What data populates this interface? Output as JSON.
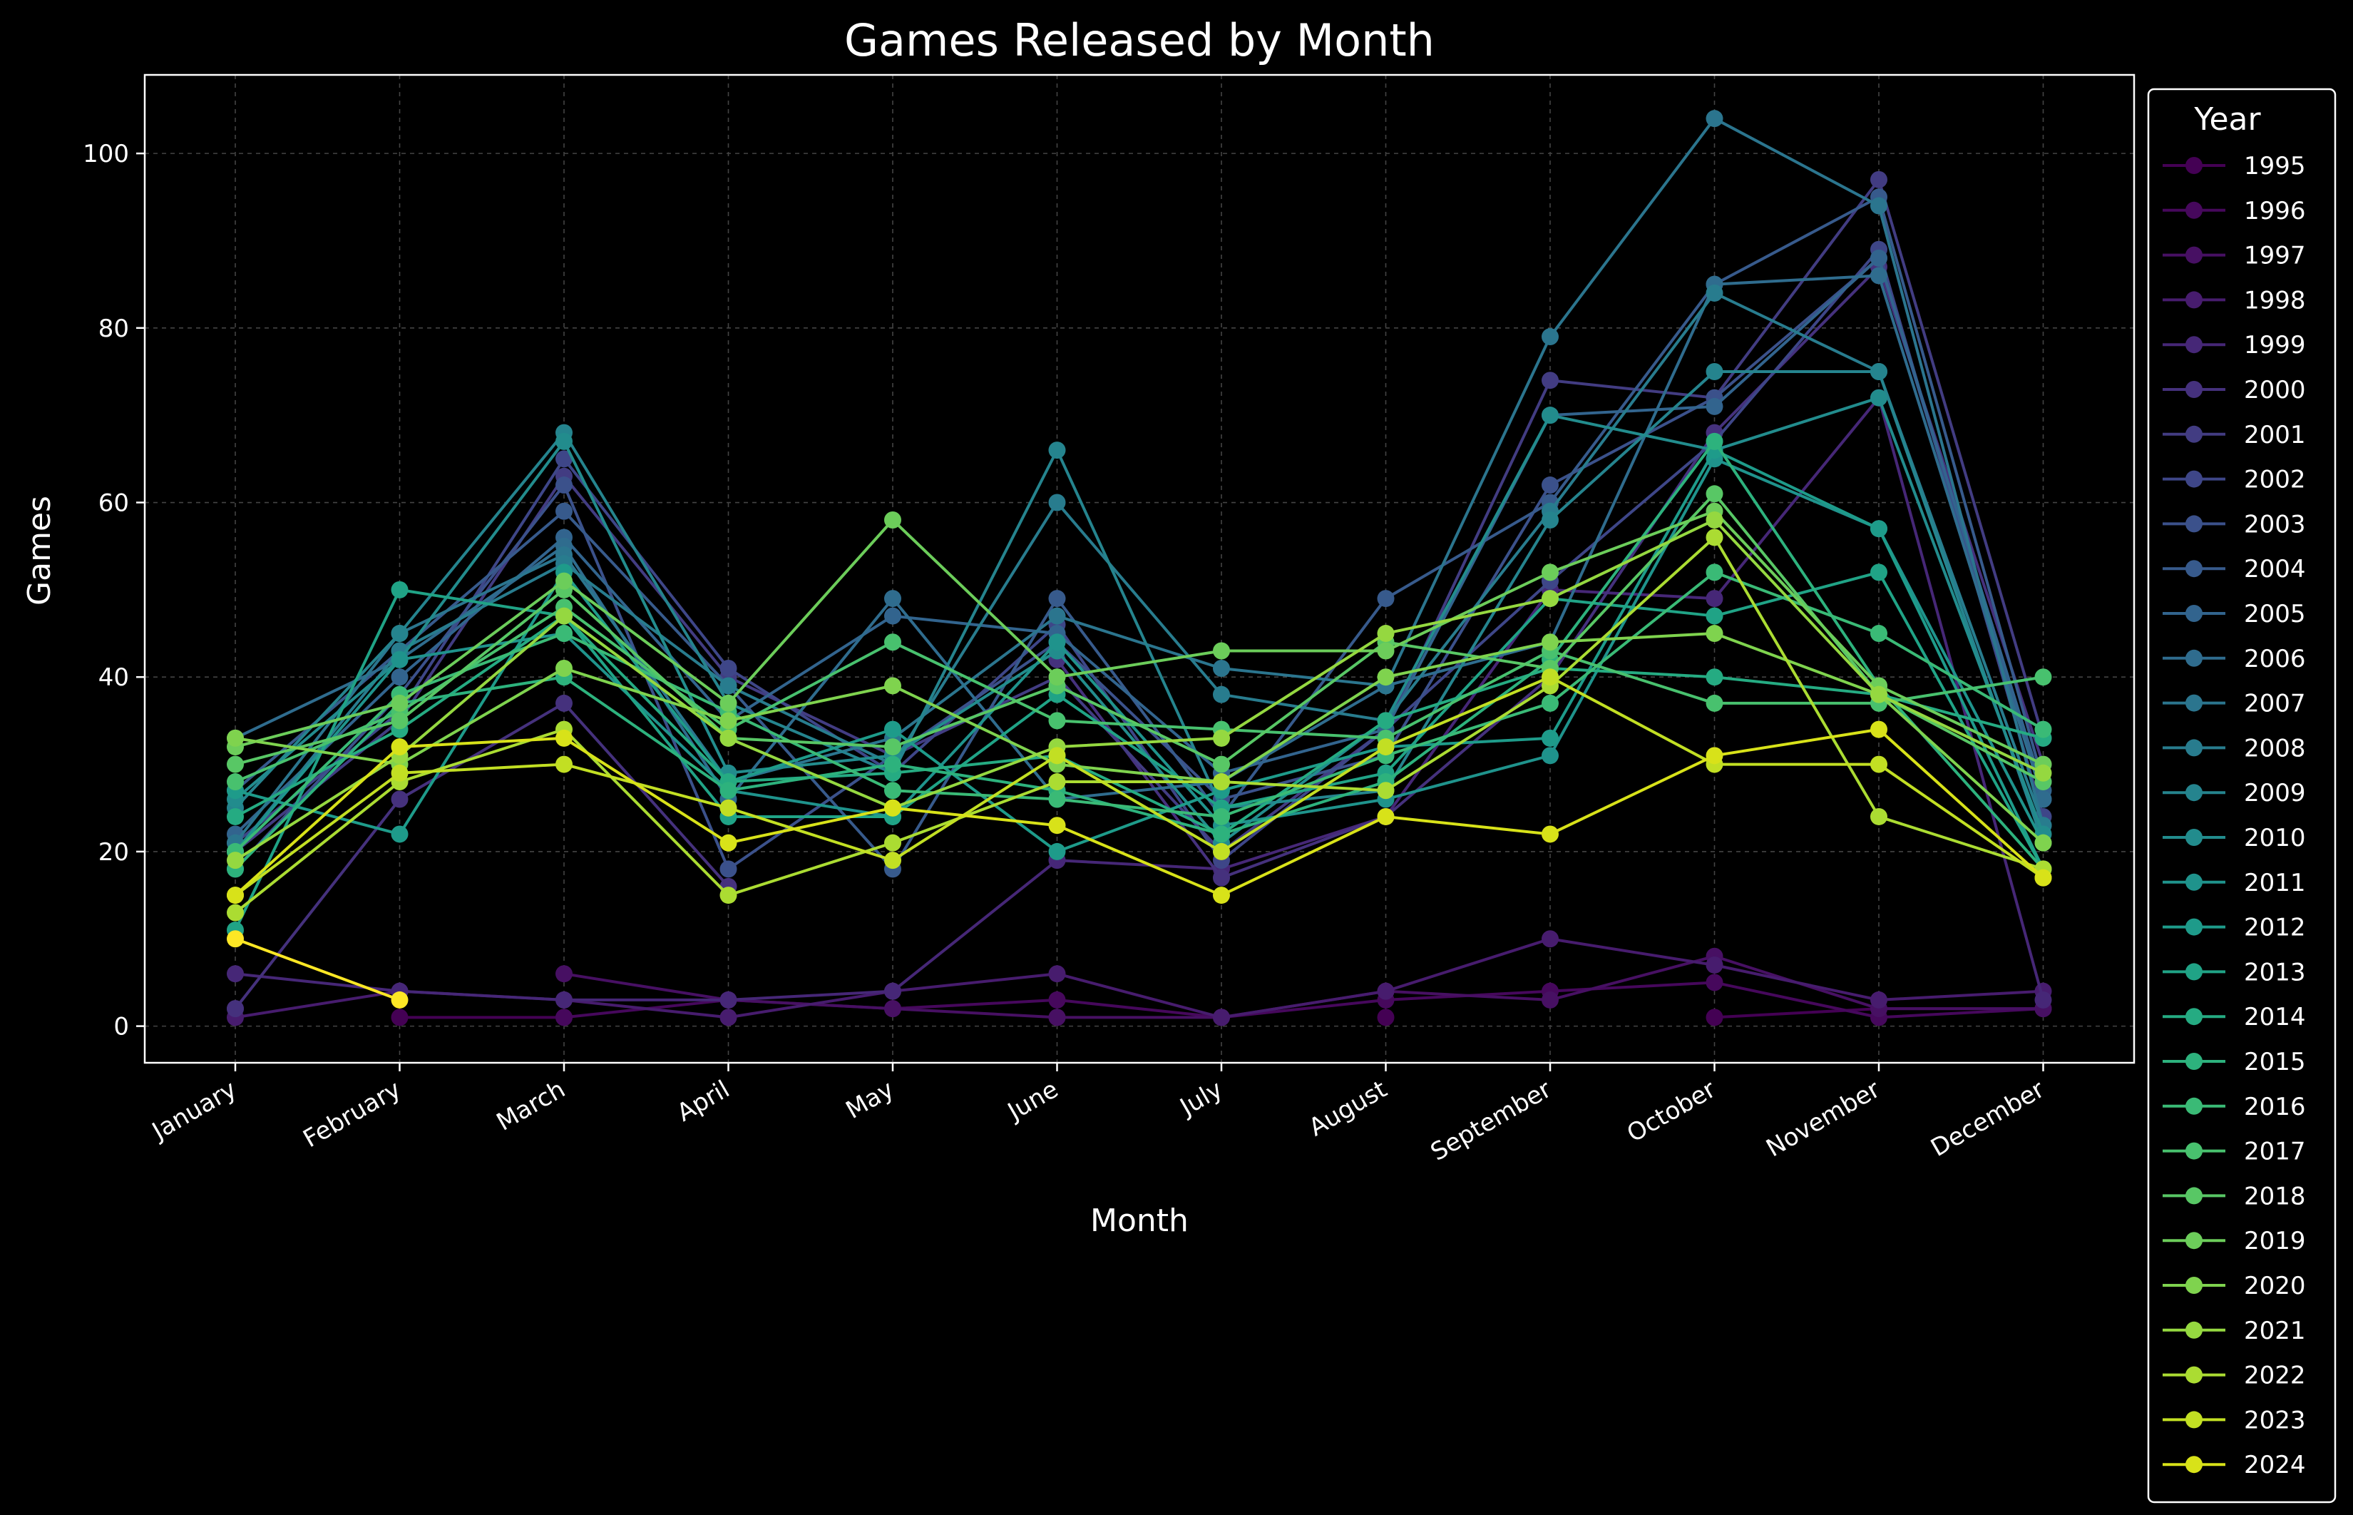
{
  "chart_data": {
    "type": "line",
    "title": "Games Released by Month",
    "xlabel": "Month",
    "ylabel": "Games",
    "ylim": [
      -4.2,
      109
    ],
    "yticks": [
      0,
      20,
      40,
      60,
      80,
      100
    ],
    "grid": true,
    "legend_title": "Year",
    "legend_position": "outside right",
    "colormap": "viridis",
    "categories": [
      "January",
      "February",
      "March",
      "April",
      "May",
      "June",
      "July",
      "August",
      "September",
      "October",
      "November",
      "December"
    ],
    "series": [
      {
        "name": "1995",
        "color": "#440154",
        "values": [
          null,
          1,
          1,
          null,
          null,
          1,
          null,
          1,
          null,
          1,
          2,
          2
        ]
      },
      {
        "name": "1996",
        "color": "#46085c",
        "values": [
          2,
          null,
          1,
          3,
          2,
          3,
          1,
          3,
          4,
          5,
          1,
          2
        ]
      },
      {
        "name": "1997",
        "color": "#471063",
        "values": [
          null,
          null,
          6,
          3,
          2,
          1,
          1,
          4,
          3,
          8,
          2,
          2
        ]
      },
      {
        "name": "1998",
        "color": "#471c6e",
        "values": [
          1,
          4,
          3,
          1,
          4,
          6,
          1,
          4,
          10,
          7,
          3,
          4
        ]
      },
      {
        "name": "1999",
        "color": "#462777",
        "values": [
          6,
          4,
          3,
          3,
          4,
          19,
          18,
          24,
          50,
          49,
          72,
          3
        ]
      },
      {
        "name": "2000",
        "color": "#45317d",
        "values": [
          2,
          26,
          37,
          16,
          null,
          42,
          17,
          24,
          40,
          68,
          87,
          30
        ]
      },
      {
        "name": "2001",
        "color": "#423c82",
        "values": [
          20,
          35,
          63,
          40,
          31,
          40,
          20,
          34,
          74,
          72,
          97,
          33
        ]
      },
      {
        "name": "2002",
        "color": "#3e4688",
        "values": [
          21,
          36,
          65,
          41,
          29,
          46,
          19,
          34,
          51,
          67,
          89,
          24
        ]
      },
      {
        "name": "2003",
        "color": "#3b518b",
        "values": [
          18,
          38,
          62,
          18,
          31,
          44,
          26,
          31,
          62,
          72,
          88,
          26
        ]
      },
      {
        "name": "2004",
        "color": "#375a8c",
        "values": [
          27,
          43,
          59,
          39,
          18,
          49,
          24,
          49,
          60,
          85,
          95,
          28
        ]
      },
      {
        "name": "2005",
        "color": "#32648e",
        "values": [
          22,
          40,
          56,
          35,
          47,
          45,
          29,
          34,
          70,
          71,
          88,
          27
        ]
      },
      {
        "name": "2006",
        "color": "#2f6c8e",
        "values": [
          33,
          42,
          55,
          26,
          49,
          26,
          28,
          39,
          44,
          85,
          86,
          26
        ]
      },
      {
        "name": "2007",
        "color": "#2b758e",
        "values": [
          21,
          45,
          54,
          28,
          33,
          47,
          41,
          39,
          79,
          104,
          94,
          23
        ]
      },
      {
        "name": "2008",
        "color": "#287c8e",
        "values": [
          20,
          43,
          53,
          39,
          30,
          60,
          38,
          35,
          59,
          84,
          75,
          23
        ]
      },
      {
        "name": "2009",
        "color": "#25848e",
        "values": [
          25,
          45,
          68,
          37,
          29,
          66,
          25,
          27,
          58,
          75,
          75,
          21
        ]
      },
      {
        "name": "2010",
        "color": "#228c8d",
        "values": [
          26,
          42,
          67,
          29,
          31,
          43,
          21,
          35,
          70,
          66,
          72,
          22
        ]
      },
      {
        "name": "2011",
        "color": "#1f938c",
        "values": [
          20,
          42,
          45,
          27,
          24,
          44,
          23,
          26,
          31,
          65,
          57,
          21
        ]
      },
      {
        "name": "2012",
        "color": "#1e9b8a",
        "values": [
          27,
          22,
          52,
          28,
          34,
          20,
          27,
          32,
          33,
          66,
          57,
          18
        ]
      },
      {
        "name": "2013",
        "color": "#20a386",
        "values": [
          11,
          50,
          47,
          24,
          24,
          38,
          25,
          29,
          49,
          47,
          52,
          18
        ]
      },
      {
        "name": "2014",
        "color": "#25ab82",
        "values": [
          24,
          34,
          47,
          28,
          29,
          31,
          22,
          35,
          41,
          40,
          38,
          33
        ]
      },
      {
        "name": "2015",
        "color": "#2db27d",
        "values": [
          18,
          37,
          40,
          27,
          30,
          27,
          22,
          28,
          42,
          67,
          39,
          18
        ]
      },
      {
        "name": "2016",
        "color": "#3aba76",
        "values": [
          20,
          38,
          45,
          36,
          27,
          26,
          24,
          31,
          37,
          52,
          45,
          34
        ]
      },
      {
        "name": "2017",
        "color": "#48c16e",
        "values": [
          28,
          36,
          48,
          34,
          44,
          35,
          34,
          33,
          43,
          37,
          37,
          40
        ]
      },
      {
        "name": "2018",
        "color": "#58c765",
        "values": [
          30,
          35,
          50,
          33,
          32,
          39,
          30,
          44,
          41,
          61,
          38,
          28
        ]
      },
      {
        "name": "2019",
        "color": "#6ccd5a",
        "values": [
          32,
          37,
          51,
          37,
          58,
          40,
          43,
          43,
          52,
          59,
          39,
          30
        ]
      },
      {
        "name": "2020",
        "color": "#7fd34e",
        "values": [
          33,
          30,
          41,
          35,
          39,
          30,
          28,
          40,
          44,
          45,
          38,
          21
        ]
      },
      {
        "name": "2021",
        "color": "#95d840",
        "values": [
          19,
          31,
          47,
          33,
          25,
          32,
          33,
          45,
          49,
          58,
          38,
          29
        ]
      },
      {
        "name": "2022",
        "color": "#abdc32",
        "values": [
          13,
          28,
          34,
          15,
          21,
          28,
          28,
          27,
          39,
          56,
          24,
          18
        ]
      },
      {
        "name": "2023",
        "color": "#c2df23",
        "values": [
          15,
          29,
          30,
          25,
          19,
          31,
          20,
          32,
          40,
          30,
          30,
          17
        ]
      },
      {
        "name": "2024",
        "color": "#d8e219",
        "values": [
          15,
          32,
          33,
          21,
          25,
          23,
          15,
          24,
          22,
          31,
          34,
          17
        ]
      },
      {
        "name": "",
        "color": "#fde725",
        "values": [
          10,
          3,
          null,
          null,
          null,
          null,
          null,
          null,
          null,
          null,
          null,
          null
        ]
      }
    ]
  }
}
